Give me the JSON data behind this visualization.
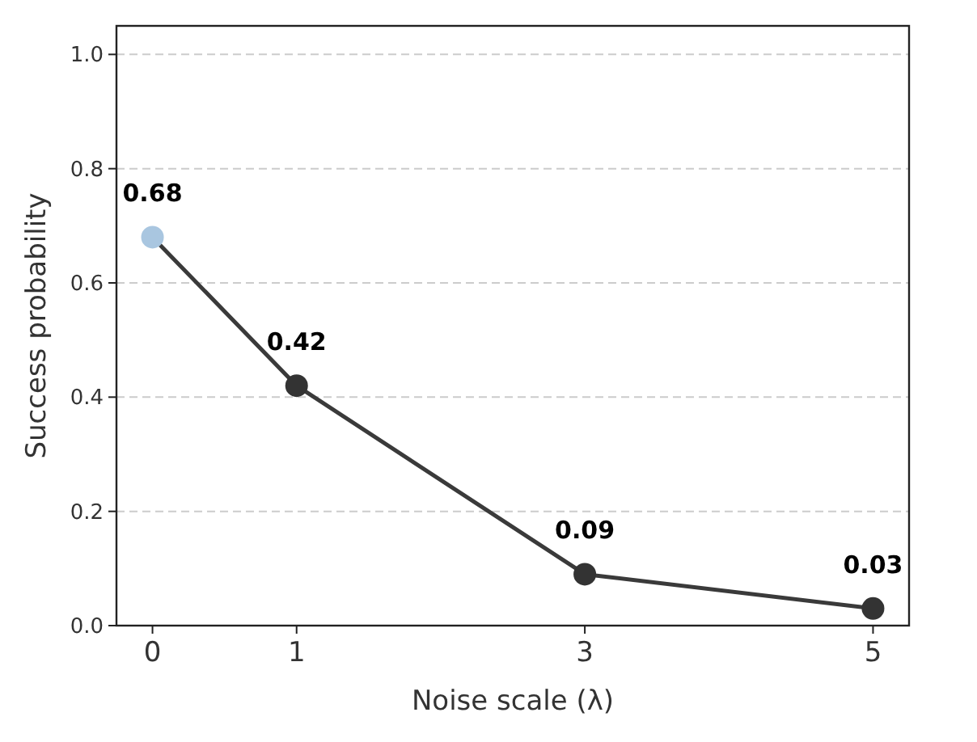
{
  "chart_data": {
    "type": "line",
    "xlabel": "Noise scale (λ)",
    "ylabel": "Success probability",
    "x": [
      0,
      1,
      3,
      5
    ],
    "series": [
      {
        "color": "#3a3a3a",
        "colors": [
          "#a9c6e0",
          "#333333",
          "#333333",
          "#333333"
        ],
        "values": [
          0.68,
          0.42,
          0.09,
          0.03
        ]
      }
    ],
    "xlim": [
      -0.25,
      5.25
    ],
    "xticks": [
      0,
      1,
      3,
      5
    ],
    "ylim": [
      0,
      1.05
    ],
    "yticks": [
      {
        "value": 0,
        "label": "0.0"
      },
      0.2,
      0.4,
      0.6,
      0.8,
      {
        "value": 1,
        "label": "1.0"
      }
    ],
    "grid": "y",
    "marker": "circle",
    "data_labels": true
  }
}
